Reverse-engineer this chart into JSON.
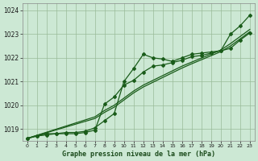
{
  "title": "Graphe pression niveau de la mer (hPa)",
  "background_color": "#cce8d4",
  "plot_bg": "#cce8d4",
  "grid_color": "#99bb99",
  "line_color": "#1a5c1a",
  "xlim": [
    -0.5,
    23.5
  ],
  "ylim": [
    1018.5,
    1024.3
  ],
  "yticks": [
    1019,
    1020,
    1021,
    1022,
    1023,
    1024
  ],
  "xticks": [
    0,
    1,
    2,
    3,
    4,
    5,
    6,
    7,
    8,
    9,
    10,
    11,
    12,
    13,
    14,
    15,
    16,
    17,
    18,
    19,
    20,
    21,
    22,
    23
  ],
  "series_with_markers": [
    [
      1018.6,
      1018.7,
      1018.8,
      1018.8,
      1018.85,
      1018.85,
      1018.9,
      1019.05,
      1019.35,
      1019.65,
      1021.0,
      1021.55,
      1022.15,
      1022.0,
      1021.95,
      1021.85,
      1022.0,
      1022.15,
      1022.2,
      1022.25,
      1022.3,
      1023.0,
      1023.35,
      1023.8
    ],
    [
      1018.6,
      1018.7,
      1018.75,
      1018.8,
      1018.8,
      1018.8,
      1018.85,
      1018.95,
      1020.05,
      1020.35,
      1020.85,
      1021.05,
      1021.4,
      1021.65,
      1021.7,
      1021.8,
      1021.9,
      1022.05,
      1022.1,
      1022.2,
      1022.3,
      1022.4,
      1022.75,
      1023.05
    ]
  ],
  "series_smooth": [
    [
      1018.6,
      1018.73,
      1018.86,
      1018.99,
      1019.12,
      1019.25,
      1019.38,
      1019.51,
      1019.78,
      1020.0,
      1020.3,
      1020.6,
      1020.85,
      1021.05,
      1021.25,
      1021.45,
      1021.65,
      1021.82,
      1021.99,
      1022.16,
      1022.33,
      1022.6,
      1022.9,
      1023.2
    ],
    [
      1018.6,
      1018.72,
      1018.84,
      1018.96,
      1019.08,
      1019.2,
      1019.32,
      1019.44,
      1019.7,
      1019.92,
      1020.22,
      1020.52,
      1020.77,
      1020.97,
      1021.17,
      1021.37,
      1021.57,
      1021.75,
      1021.92,
      1022.09,
      1022.26,
      1022.5,
      1022.8,
      1023.1
    ]
  ]
}
